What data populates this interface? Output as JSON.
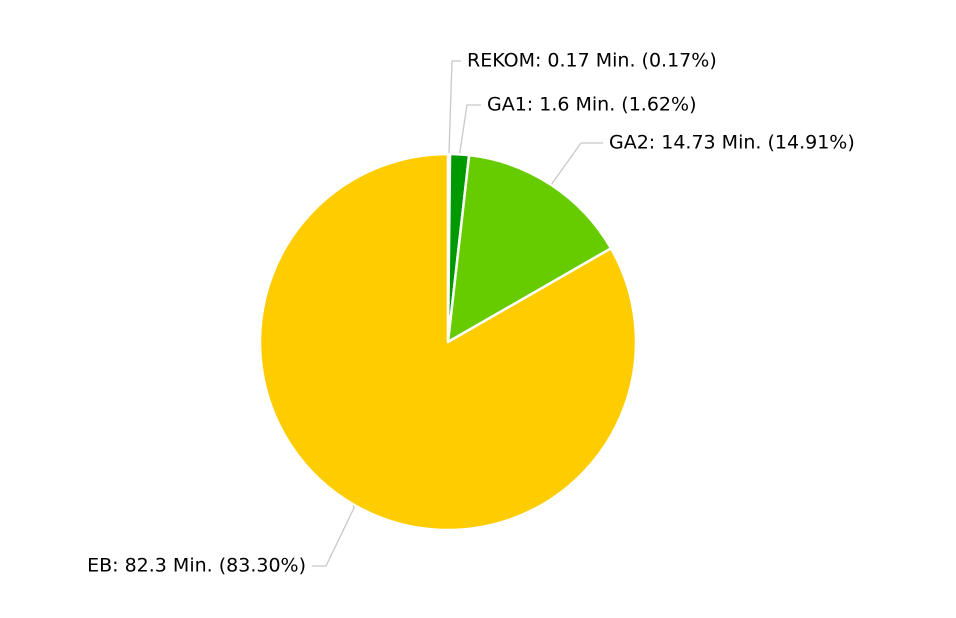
{
  "chart_data": {
    "type": "pie",
    "title": "",
    "slices": [
      {
        "name": "REKOM",
        "value": 0.17,
        "percent_label": "0.17%",
        "color": "#006600"
      },
      {
        "name": "GA1",
        "value": 1.6,
        "percent_label": "1.62%",
        "color": "#009900"
      },
      {
        "name": "GA2",
        "value": 14.73,
        "percent_label": "14.91%",
        "color": "#66cc00"
      },
      {
        "name": "EB",
        "value": 82.3,
        "percent_label": "83.30%",
        "color": "#ffcc00"
      }
    ],
    "labels": [
      "REKOM: 0.17 Min. (0.17%)",
      "GA1: 1.6 Min. (1.62%)",
      "GA2: 14.73 Min. (14.91%)",
      "EB: 82.3 Min. (83.30%)"
    ],
    "unit": "Min.",
    "start_angle": "12 o'clock",
    "direction": "clockwise",
    "legend": "none",
    "border_color": "#ffffff",
    "connector_color": "#c8c8c8"
  }
}
